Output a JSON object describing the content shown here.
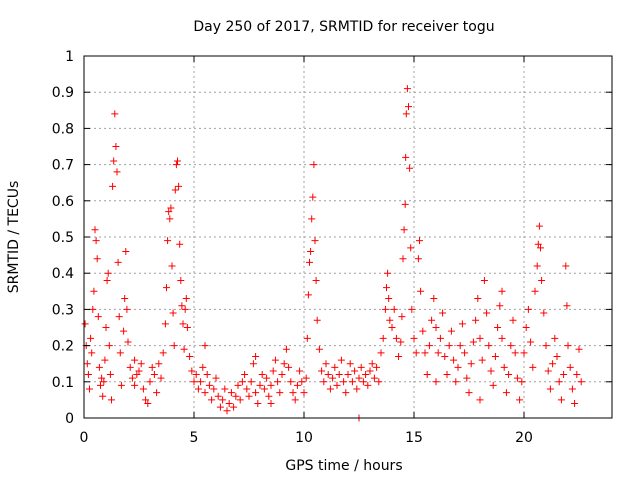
{
  "chart_data": {
    "type": "scatter",
    "title": "Day 250 of 2017, SRMTID for receiver togu",
    "xlabel": "GPS time / hours",
    "ylabel": "SRMTID / TECUs",
    "xlim": [
      0,
      24
    ],
    "ylim": [
      0,
      1
    ],
    "xticks": [
      0,
      5,
      10,
      15,
      20
    ],
    "xtick_labels": [
      "0",
      "5",
      "10",
      "15",
      "20"
    ],
    "yticks": [
      0,
      0.1,
      0.2,
      0.3,
      0.4,
      0.5,
      0.6,
      0.7,
      0.8,
      0.9,
      1
    ],
    "ytick_labels": [
      "0",
      "0.1",
      "0.2",
      "0.3",
      "0.4",
      "0.5",
      "0.6",
      "0.7",
      "0.8",
      "0.9",
      "1"
    ],
    "grid": true,
    "marker": "+",
    "marker_color": "#ff0000",
    "series": [
      {
        "name": "SRMTID",
        "points": [
          [
            0.05,
            0.26
          ],
          [
            0.1,
            0.2
          ],
          [
            0.15,
            0.15
          ],
          [
            0.2,
            0.12
          ],
          [
            0.25,
            0.08
          ],
          [
            0.3,
            0.22
          ],
          [
            0.35,
            0.18
          ],
          [
            0.4,
            0.3
          ],
          [
            0.45,
            0.35
          ],
          [
            0.5,
            0.52
          ],
          [
            0.55,
            0.49
          ],
          [
            0.6,
            0.44
          ],
          [
            0.65,
            0.28
          ],
          [
            0.7,
            0.14
          ],
          [
            0.75,
            0.09
          ],
          [
            0.8,
            0.11
          ],
          [
            0.85,
            0.06
          ],
          [
            0.9,
            0.1
          ],
          [
            0.95,
            0.16
          ],
          [
            1.0,
            0.25
          ],
          [
            1.05,
            0.38
          ],
          [
            1.1,
            0.4
          ],
          [
            1.15,
            0.2
          ],
          [
            1.2,
            0.12
          ],
          [
            1.25,
            0.05
          ],
          [
            1.3,
            0.64
          ],
          [
            1.35,
            0.71
          ],
          [
            1.4,
            0.84
          ],
          [
            1.45,
            0.75
          ],
          [
            1.5,
            0.68
          ],
          [
            1.55,
            0.43
          ],
          [
            1.6,
            0.28
          ],
          [
            1.65,
            0.18
          ],
          [
            1.7,
            0.09
          ],
          [
            1.8,
            0.24
          ],
          [
            1.85,
            0.33
          ],
          [
            1.9,
            0.46
          ],
          [
            1.95,
            0.3
          ],
          [
            2.0,
            0.21
          ],
          [
            2.1,
            0.14
          ],
          [
            2.2,
            0.11
          ],
          [
            2.3,
            0.09
          ],
          [
            2.4,
            0.12
          ],
          [
            2.5,
            0.13
          ],
          [
            2.6,
            0.15
          ],
          [
            2.7,
            0.08
          ],
          [
            2.8,
            0.05
          ],
          [
            2.9,
            0.04
          ],
          [
            3.0,
            0.1
          ],
          [
            3.1,
            0.14
          ],
          [
            3.2,
            0.12
          ],
          [
            3.3,
            0.07
          ],
          [
            3.4,
            0.15
          ],
          [
            3.5,
            0.11
          ],
          [
            3.6,
            0.18
          ],
          [
            3.7,
            0.26
          ],
          [
            3.75,
            0.36
          ],
          [
            3.8,
            0.49
          ],
          [
            3.85,
            0.57
          ],
          [
            3.9,
            0.55
          ],
          [
            3.95,
            0.58
          ],
          [
            4.0,
            0.42
          ],
          [
            4.05,
            0.29
          ],
          [
            4.1,
            0.2
          ],
          [
            4.15,
            0.63
          ],
          [
            4.2,
            0.7
          ],
          [
            4.25,
            0.71
          ],
          [
            4.3,
            0.64
          ],
          [
            4.35,
            0.48
          ],
          [
            4.4,
            0.38
          ],
          [
            4.45,
            0.31
          ],
          [
            4.5,
            0.26
          ],
          [
            4.55,
            0.19
          ],
          [
            4.6,
            0.3
          ],
          [
            4.65,
            0.33
          ],
          [
            4.7,
            0.25
          ],
          [
            4.8,
            0.17
          ],
          [
            4.9,
            0.13
          ],
          [
            5.0,
            0.1
          ],
          [
            5.1,
            0.12
          ],
          [
            5.2,
            0.08
          ],
          [
            5.3,
            0.1
          ],
          [
            5.4,
            0.14
          ],
          [
            5.5,
            0.07
          ],
          [
            5.6,
            0.12
          ],
          [
            5.7,
            0.09
          ],
          [
            5.8,
            0.05
          ],
          [
            5.9,
            0.08
          ],
          [
            6.0,
            0.11
          ],
          [
            6.1,
            0.06
          ],
          [
            6.2,
            0.03
          ],
          [
            6.3,
            0.05
          ],
          [
            6.4,
            0.08
          ],
          [
            6.5,
            0.02
          ],
          [
            6.6,
            0.04
          ],
          [
            6.7,
            0.07
          ],
          [
            6.8,
            0.03
          ],
          [
            6.9,
            0.06
          ],
          [
            7.0,
            0.09
          ],
          [
            7.1,
            0.05
          ],
          [
            7.2,
            0.1
          ],
          [
            7.3,
            0.12
          ],
          [
            7.4,
            0.08
          ],
          [
            7.5,
            0.06
          ],
          [
            7.6,
            0.1
          ],
          [
            7.7,
            0.15
          ],
          [
            7.8,
            0.07
          ],
          [
            7.9,
            0.04
          ],
          [
            8.0,
            0.09
          ],
          [
            8.1,
            0.12
          ],
          [
            8.2,
            0.08
          ],
          [
            8.3,
            0.11
          ],
          [
            8.4,
            0.06
          ],
          [
            8.5,
            0.09
          ],
          [
            8.6,
            0.13
          ],
          [
            8.7,
            0.16
          ],
          [
            8.8,
            0.1
          ],
          [
            8.9,
            0.07
          ],
          [
            9.0,
            0.12
          ],
          [
            9.1,
            0.15
          ],
          [
            9.2,
            0.19
          ],
          [
            9.3,
            0.14
          ],
          [
            9.4,
            0.1
          ],
          [
            9.5,
            0.07
          ],
          [
            9.6,
            0.05
          ],
          [
            9.7,
            0.09
          ],
          [
            9.8,
            0.13
          ],
          [
            9.9,
            0.1
          ],
          [
            10.0,
            0.07
          ],
          [
            10.1,
            0.11
          ],
          [
            10.15,
            0.22
          ],
          [
            10.2,
            0.34
          ],
          [
            10.25,
            0.43
          ],
          [
            10.3,
            0.46
          ],
          [
            10.35,
            0.55
          ],
          [
            10.4,
            0.61
          ],
          [
            10.45,
            0.7
          ],
          [
            10.5,
            0.49
          ],
          [
            10.55,
            0.38
          ],
          [
            10.6,
            0.27
          ],
          [
            10.7,
            0.19
          ],
          [
            10.8,
            0.13
          ],
          [
            10.9,
            0.1
          ],
          [
            11.0,
            0.15
          ],
          [
            11.1,
            0.12
          ],
          [
            11.2,
            0.08
          ],
          [
            11.3,
            0.11
          ],
          [
            11.4,
            0.14
          ],
          [
            11.5,
            0.09
          ],
          [
            11.6,
            0.12
          ],
          [
            11.7,
            0.16
          ],
          [
            11.8,
            0.1
          ],
          [
            11.9,
            0.07
          ],
          [
            12.0,
            0.12
          ],
          [
            12.1,
            0.15
          ],
          [
            12.2,
            0.1
          ],
          [
            12.3,
            0.13
          ],
          [
            12.4,
            0.08
          ],
          [
            12.5,
            0.11
          ],
          [
            12.6,
            0.14
          ],
          [
            12.7,
            0.1
          ],
          [
            12.8,
            0.12
          ],
          [
            12.9,
            0.09
          ],
          [
            13.0,
            0.13
          ],
          [
            13.1,
            0.15
          ],
          [
            13.2,
            0.11
          ],
          [
            13.3,
            0.14
          ],
          [
            13.4,
            0.1
          ],
          [
            13.5,
            0.18
          ],
          [
            13.6,
            0.22
          ],
          [
            13.7,
            0.3
          ],
          [
            13.75,
            0.36
          ],
          [
            13.8,
            0.4
          ],
          [
            13.85,
            0.33
          ],
          [
            13.9,
            0.27
          ],
          [
            14.0,
            0.25
          ],
          [
            14.1,
            0.3
          ],
          [
            14.2,
            0.22
          ],
          [
            14.3,
            0.17
          ],
          [
            14.4,
            0.21
          ],
          [
            14.45,
            0.28
          ],
          [
            14.5,
            0.44
          ],
          [
            14.55,
            0.52
          ],
          [
            14.6,
            0.59
          ],
          [
            14.62,
            0.72
          ],
          [
            14.65,
            0.84
          ],
          [
            14.7,
            0.91
          ],
          [
            14.75,
            0.86
          ],
          [
            14.8,
            0.69
          ],
          [
            14.85,
            0.47
          ],
          [
            14.9,
            0.3
          ],
          [
            15.0,
            0.22
          ],
          [
            15.1,
            0.18
          ],
          [
            15.2,
            0.44
          ],
          [
            15.25,
            0.49
          ],
          [
            15.3,
            0.35
          ],
          [
            15.4,
            0.24
          ],
          [
            15.5,
            0.18
          ],
          [
            15.6,
            0.12
          ],
          [
            15.7,
            0.2
          ],
          [
            15.8,
            0.27
          ],
          [
            15.9,
            0.33
          ],
          [
            16.0,
            0.25
          ],
          [
            16.1,
            0.18
          ],
          [
            16.2,
            0.22
          ],
          [
            16.3,
            0.29
          ],
          [
            16.4,
            0.17
          ],
          [
            16.5,
            0.12
          ],
          [
            16.6,
            0.2
          ],
          [
            16.7,
            0.24
          ],
          [
            16.8,
            0.16
          ],
          [
            16.9,
            0.1
          ],
          [
            17.0,
            0.14
          ],
          [
            17.1,
            0.2
          ],
          [
            17.2,
            0.26
          ],
          [
            17.3,
            0.18
          ],
          [
            17.4,
            0.11
          ],
          [
            17.5,
            0.07
          ],
          [
            17.6,
            0.15
          ],
          [
            17.7,
            0.21
          ],
          [
            17.8,
            0.27
          ],
          [
            17.9,
            0.33
          ],
          [
            18.0,
            0.22
          ],
          [
            18.1,
            0.16
          ],
          [
            18.2,
            0.38
          ],
          [
            18.3,
            0.29
          ],
          [
            18.4,
            0.2
          ],
          [
            18.5,
            0.13
          ],
          [
            18.6,
            0.09
          ],
          [
            18.7,
            0.17
          ],
          [
            18.8,
            0.25
          ],
          [
            18.9,
            0.31
          ],
          [
            19.0,
            0.22
          ],
          [
            19.1,
            0.14
          ],
          [
            19.2,
            0.07
          ],
          [
            19.3,
            0.12
          ],
          [
            19.4,
            0.2
          ],
          [
            19.5,
            0.27
          ],
          [
            19.6,
            0.18
          ],
          [
            19.7,
            0.11
          ],
          [
            19.8,
            0.05
          ],
          [
            19.9,
            0.1
          ],
          [
            20.0,
            0.18
          ],
          [
            20.1,
            0.25
          ],
          [
            20.2,
            0.3
          ],
          [
            20.3,
            0.21
          ],
          [
            20.4,
            0.14
          ],
          [
            20.5,
            0.35
          ],
          [
            20.6,
            0.42
          ],
          [
            20.65,
            0.48
          ],
          [
            20.7,
            0.53
          ],
          [
            20.75,
            0.47
          ],
          [
            20.8,
            0.38
          ],
          [
            20.9,
            0.29
          ],
          [
            21.0,
            0.2
          ],
          [
            21.1,
            0.13
          ],
          [
            21.2,
            0.08
          ],
          [
            21.3,
            0.15
          ],
          [
            21.4,
            0.22
          ],
          [
            21.5,
            0.17
          ],
          [
            21.6,
            0.1
          ],
          [
            21.7,
            0.05
          ],
          [
            21.8,
            0.12
          ],
          [
            21.9,
            0.42
          ],
          [
            21.95,
            0.31
          ],
          [
            22.0,
            0.2
          ],
          [
            22.1,
            0.14
          ],
          [
            22.2,
            0.08
          ],
          [
            22.3,
            0.04
          ],
          [
            22.4,
            0.12
          ],
          [
            22.5,
            0.19
          ],
          [
            22.6,
            0.1
          ],
          [
            12.5,
            0.0
          ],
          [
            8.5,
            0.04
          ],
          [
            2.3,
            0.16
          ],
          [
            5.5,
            0.2
          ],
          [
            7.8,
            0.17
          ],
          [
            16.0,
            0.1
          ],
          [
            18.0,
            0.05
          ],
          [
            19.0,
            0.35
          ]
        ]
      }
    ]
  }
}
